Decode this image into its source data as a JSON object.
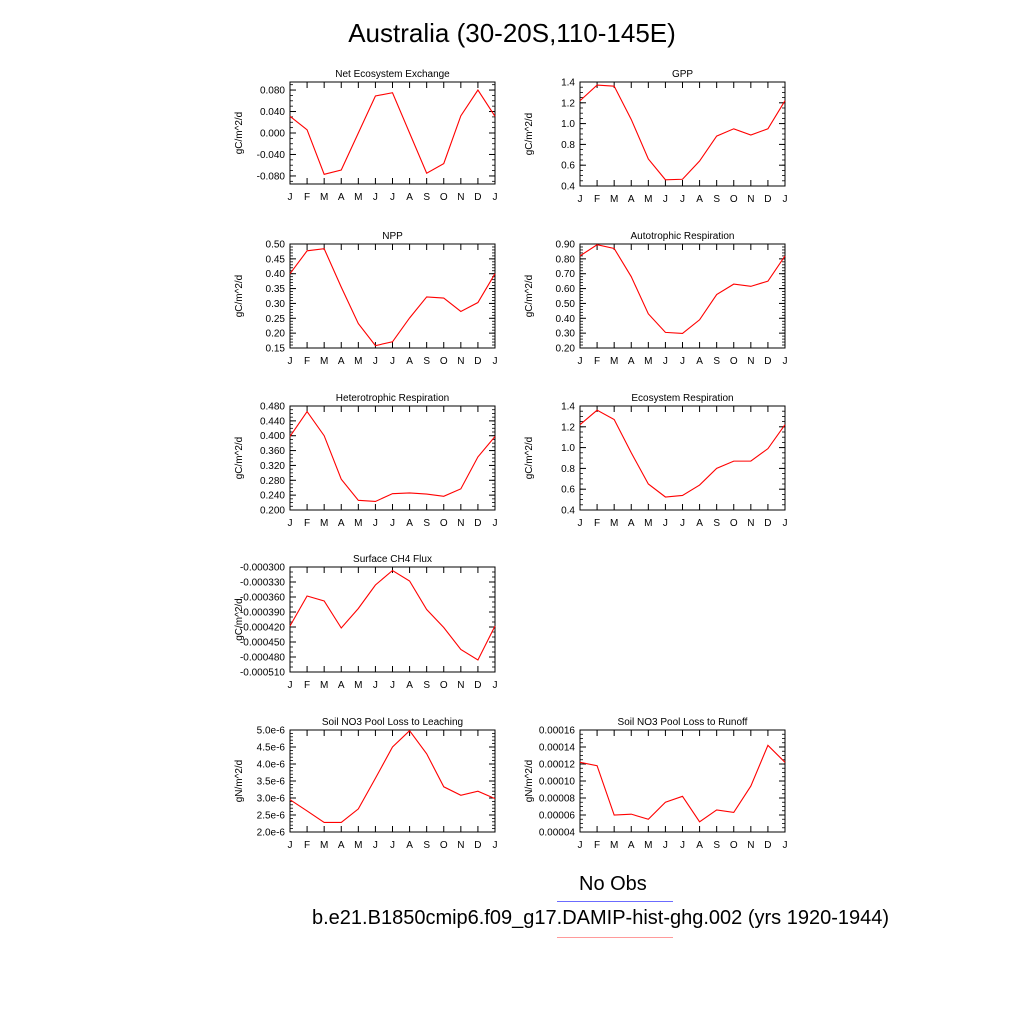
{
  "page": {
    "title": "Australia (30-20S,110-145E)",
    "legend": {
      "obs_label": "No Obs",
      "obs_color": "#6b6bff",
      "model_label": "b.e21.B1850cmip6.f09_g17.DAMIP-hist-ghg.002 (yrs 1920-1944)",
      "model_color": "#ff0000"
    }
  },
  "chart_data": [
    {
      "type": "line",
      "title": "Net Ecosystem Exchange",
      "ylabel": "gC/m^2/d",
      "x": [
        "J",
        "F",
        "M",
        "A",
        "M",
        "J",
        "J",
        "A",
        "S",
        "O",
        "N",
        "D",
        "J"
      ],
      "ylim": [
        -0.095,
        0.095
      ],
      "yticks": [
        -0.08,
        -0.04,
        0.0,
        0.04,
        0.08
      ],
      "yticklabels": [
        "-0.080",
        "-0.040",
        "0.000",
        "0.040",
        "0.080"
      ],
      "yminor": 0.01,
      "series": [
        {
          "values": [
            0.031,
            0.006,
            -0.077,
            -0.069,
            0.0,
            0.069,
            0.075,
            0.0,
            -0.075,
            -0.057,
            0.032,
            0.08,
            0.031
          ]
        }
      ]
    },
    {
      "type": "line",
      "title": "GPP",
      "ylabel": "gC/m^2/d",
      "x": [
        "J",
        "F",
        "M",
        "A",
        "M",
        "J",
        "J",
        "A",
        "S",
        "O",
        "N",
        "D",
        "J"
      ],
      "ylim": [
        0.4,
        1.4
      ],
      "yticks": [
        0.4,
        0.6,
        0.8,
        1.0,
        1.2,
        1.4
      ],
      "yticklabels": [
        "0.4",
        "0.6",
        "0.8",
        "1.0",
        "1.2",
        "1.4"
      ],
      "yminor": 0.05,
      "series": [
        {
          "values": [
            1.22,
            1.37,
            1.36,
            1.04,
            0.66,
            0.46,
            0.465,
            0.64,
            0.88,
            0.95,
            0.89,
            0.95,
            1.22
          ]
        }
      ]
    },
    {
      "type": "line",
      "title": "NPP",
      "ylabel": "gC/m^2/d",
      "x": [
        "J",
        "F",
        "M",
        "A",
        "M",
        "J",
        "J",
        "A",
        "S",
        "O",
        "N",
        "D",
        "J"
      ],
      "ylim": [
        0.15,
        0.5
      ],
      "yticks": [
        0.15,
        0.2,
        0.25,
        0.3,
        0.35,
        0.4,
        0.45,
        0.5
      ],
      "yticklabels": [
        "0.15",
        "0.20",
        "0.25",
        "0.30",
        "0.35",
        "0.40",
        "0.45",
        "0.50"
      ],
      "yminor": 0.01,
      "series": [
        {
          "values": [
            0.4,
            0.477,
            0.484,
            0.355,
            0.232,
            0.158,
            0.171,
            0.251,
            0.322,
            0.318,
            0.273,
            0.303,
            0.4
          ]
        }
      ]
    },
    {
      "type": "line",
      "title": "Autotrophic Respiration",
      "ylabel": "gC/m^2/d",
      "x": [
        "J",
        "F",
        "M",
        "A",
        "M",
        "J",
        "J",
        "A",
        "S",
        "O",
        "N",
        "D",
        "J"
      ],
      "ylim": [
        0.2,
        0.9
      ],
      "yticks": [
        0.2,
        0.3,
        0.4,
        0.5,
        0.6,
        0.7,
        0.8,
        0.9
      ],
      "yticklabels": [
        "0.20",
        "0.30",
        "0.40",
        "0.50",
        "0.60",
        "0.70",
        "0.80",
        "0.90"
      ],
      "yminor": 0.02,
      "series": [
        {
          "values": [
            0.82,
            0.895,
            0.87,
            0.68,
            0.43,
            0.305,
            0.298,
            0.39,
            0.56,
            0.63,
            0.615,
            0.65,
            0.82
          ]
        }
      ]
    },
    {
      "type": "line",
      "title": "Heterotrophic Respiration",
      "ylabel": "gC/m^2/d",
      "x": [
        "J",
        "F",
        "M",
        "A",
        "M",
        "J",
        "J",
        "A",
        "S",
        "O",
        "N",
        "D",
        "J"
      ],
      "ylim": [
        0.2,
        0.48
      ],
      "yticks": [
        0.2,
        0.24,
        0.28,
        0.32,
        0.36,
        0.4,
        0.44,
        0.48
      ],
      "yticklabels": [
        "0.200",
        "0.240",
        "0.280",
        "0.320",
        "0.360",
        "0.400",
        "0.440",
        "0.480"
      ],
      "yminor": 0.01,
      "series": [
        {
          "values": [
            0.398,
            0.465,
            0.4,
            0.283,
            0.226,
            0.223,
            0.244,
            0.246,
            0.243,
            0.237,
            0.257,
            0.343,
            0.398
          ]
        }
      ]
    },
    {
      "type": "line",
      "title": "Ecosystem Respiration",
      "ylabel": "gC/m^2/d",
      "x": [
        "J",
        "F",
        "M",
        "A",
        "M",
        "J",
        "J",
        "A",
        "S",
        "O",
        "N",
        "D",
        "J"
      ],
      "ylim": [
        0.4,
        1.4
      ],
      "yticks": [
        0.4,
        0.6,
        0.8,
        1.0,
        1.2,
        1.4
      ],
      "yticklabels": [
        "0.4",
        "0.6",
        "0.8",
        "1.0",
        "1.2",
        "1.4"
      ],
      "yminor": 0.05,
      "series": [
        {
          "values": [
            1.22,
            1.36,
            1.27,
            0.95,
            0.65,
            0.525,
            0.54,
            0.64,
            0.8,
            0.87,
            0.87,
            0.99,
            1.22
          ]
        }
      ]
    },
    {
      "type": "line",
      "title": "Surface CH4 Flux",
      "ylabel": "gC/m^2/d",
      "x": [
        "J",
        "F",
        "M",
        "A",
        "M",
        "J",
        "J",
        "A",
        "S",
        "O",
        "N",
        "D",
        "J"
      ],
      "ylim": [
        -0.00051,
        -0.0003
      ],
      "yticks": [
        -0.00051,
        -0.00048,
        -0.00045,
        -0.00042,
        -0.00039,
        -0.00036,
        -0.00033,
        -0.0003
      ],
      "yticklabels": [
        "-0.000510",
        "-0.000480",
        "-0.000450",
        "-0.000420",
        "-0.000390",
        "-0.000360",
        "-0.000330",
        "-0.000300"
      ],
      "yminor": 1e-05,
      "series": [
        {
          "values": [
            -0.000418,
            -0.000358,
            -0.000368,
            -0.000422,
            -0.000383,
            -0.000336,
            -0.000307,
            -0.000328,
            -0.000385,
            -0.000421,
            -0.000465,
            -0.000486,
            -0.000418
          ]
        }
      ]
    },
    {
      "type": "line",
      "title": "Soil NO3 Pool Loss to Leaching",
      "ylabel": "gN/m^2/d",
      "x": [
        "J",
        "F",
        "M",
        "A",
        "M",
        "J",
        "J",
        "A",
        "S",
        "O",
        "N",
        "D",
        "J"
      ],
      "ylim": [
        2e-06,
        5e-06
      ],
      "yticks": [
        2e-06,
        2.5e-06,
        3e-06,
        3.5e-06,
        4e-06,
        4.5e-06,
        5e-06
      ],
      "yticklabels": [
        "2.0e-6",
        "2.5e-6",
        "3.0e-6",
        "3.5e-6",
        "4.0e-6",
        "4.5e-6",
        "5.0e-6"
      ],
      "yminor": 1e-07,
      "series": [
        {
          "values": [
            2.95e-06,
            2.62e-06,
            2.28e-06,
            2.28e-06,
            2.68e-06,
            3.58e-06,
            4.5e-06,
            4.98e-06,
            4.3e-06,
            3.33e-06,
            3.08e-06,
            3.2e-06,
            2.98e-06
          ]
        }
      ]
    },
    {
      "type": "line",
      "title": "Soil NO3 Pool Loss to Runoff",
      "ylabel": "gN/m^2/d",
      "x": [
        "J",
        "F",
        "M",
        "A",
        "M",
        "J",
        "J",
        "A",
        "S",
        "O",
        "N",
        "D",
        "J"
      ],
      "ylim": [
        4e-05,
        0.00016
      ],
      "yticks": [
        4e-05,
        6e-05,
        8e-05,
        0.0001,
        0.00012,
        0.00014,
        0.00016
      ],
      "yticklabels": [
        "0.00004",
        "0.00006",
        "0.00008",
        "0.00010",
        "0.00012",
        "0.00014",
        "0.00016"
      ],
      "yminor": 5e-06,
      "series": [
        {
          "values": [
            0.000122,
            0.000118,
            6e-05,
            6.1e-05,
            5.5e-05,
            7.5e-05,
            8.2e-05,
            5.2e-05,
            6.6e-05,
            6.3e-05,
            9.4e-05,
            0.000142,
            0.000122
          ]
        }
      ]
    }
  ]
}
